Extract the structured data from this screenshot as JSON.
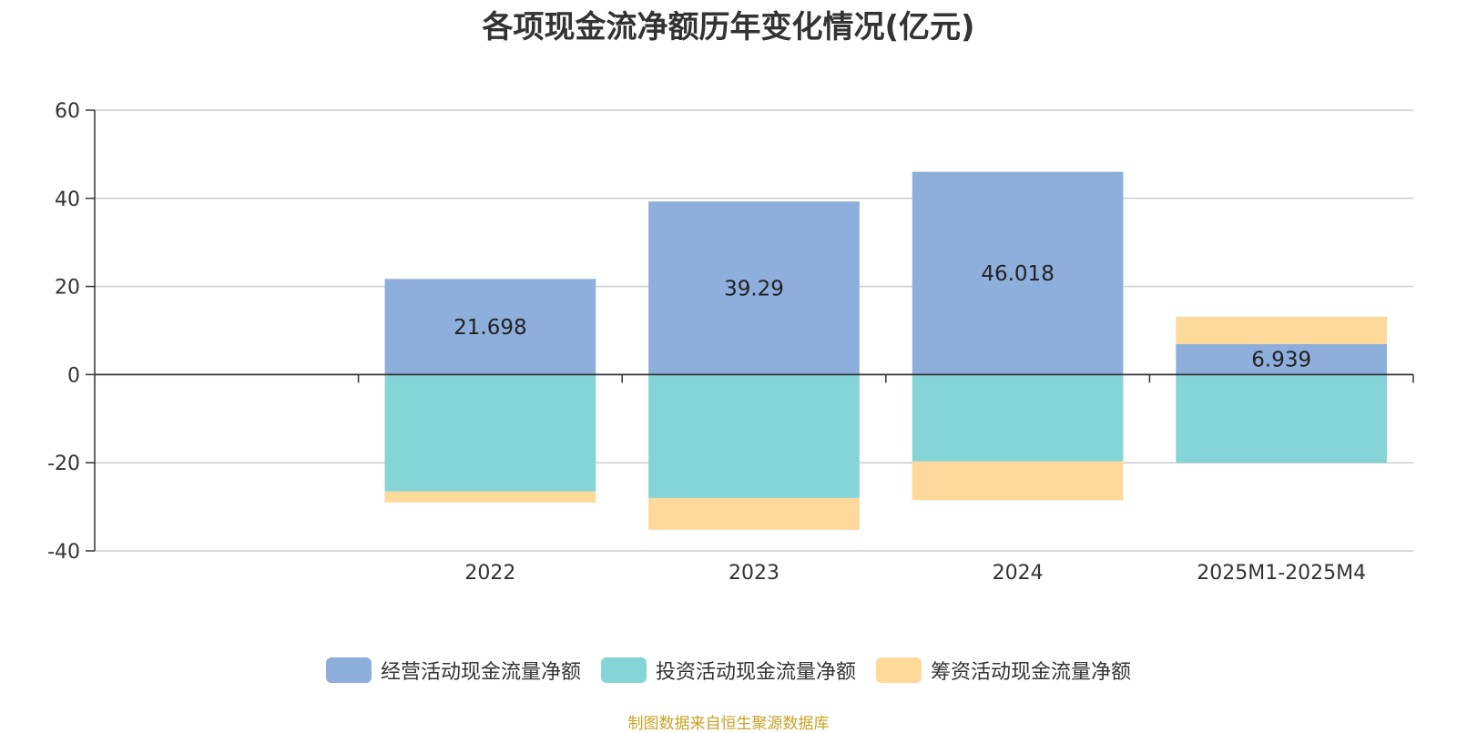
{
  "chart_data": {
    "type": "bar",
    "stacked": true,
    "title": "各项现金流净额历年变化情况(亿元)",
    "categories": [
      "",
      "2022",
      "2023",
      "2024",
      "2025M1-2025M4"
    ],
    "series": [
      {
        "name": "经营活动现金流量净额",
        "color": "#8eaedb",
        "values": [
          null,
          21.698,
          39.29,
          46.018,
          6.939
        ]
      },
      {
        "name": "投资活动现金流量净额",
        "color": "#85d4d7",
        "values": [
          null,
          -26.5,
          -28.0,
          -19.7,
          -20.0
        ]
      },
      {
        "name": "筹资活动现金流量净额",
        "color": "#fdd99a",
        "values": [
          null,
          -2.5,
          -7.2,
          -8.8,
          6.2
        ]
      }
    ],
    "data_labels": [
      "",
      "21.698",
      "39.29",
      "46.018",
      "6.939"
    ],
    "yticks": [
      60,
      40,
      20,
      0,
      -20,
      -40
    ],
    "ylim": [
      -40,
      60
    ],
    "grid": true,
    "legend_position": "bottom"
  },
  "footer": {
    "source": "制图数据来自恒生聚源数据库"
  }
}
